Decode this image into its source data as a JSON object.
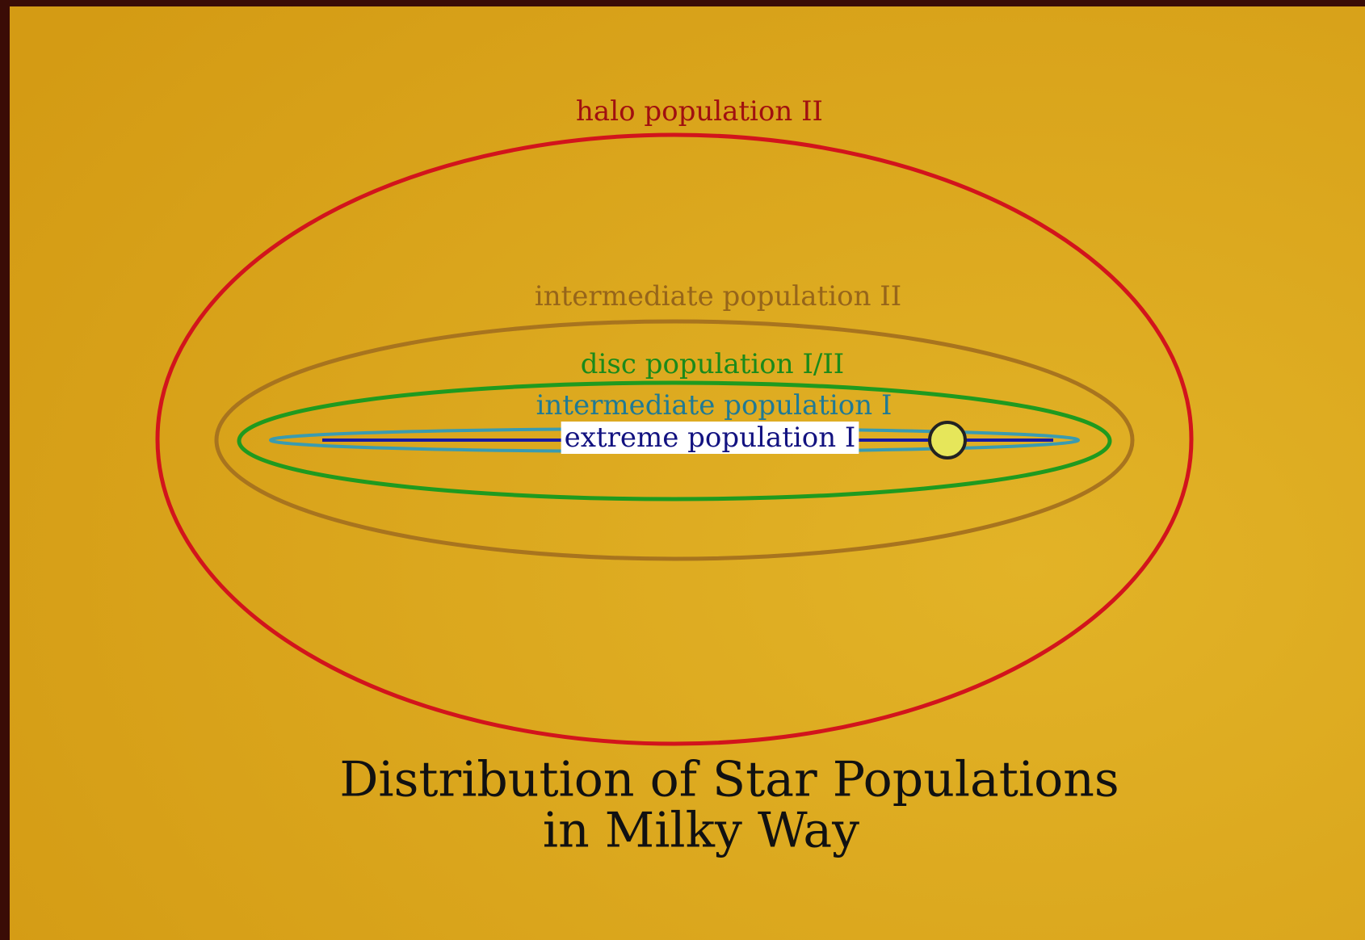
{
  "title": {
    "line1": "Distribution of Star Populations",
    "line2": "in Milky Way"
  },
  "populations": [
    {
      "label": "halo population II"
    },
    {
      "label": "intermediate population II"
    },
    {
      "label": "disc population I/II"
    },
    {
      "label": "intermediate population I"
    },
    {
      "label": "extreme population I"
    }
  ]
}
